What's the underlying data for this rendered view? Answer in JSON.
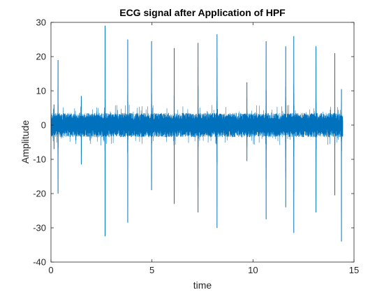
{
  "chart_data": {
    "type": "line",
    "title": "ECG signal after Application of HPF",
    "xlabel": "time",
    "ylabel": "Amplitude",
    "xlim": [
      0,
      15
    ],
    "ylim": [
      -40,
      30
    ],
    "xticks": [
      0,
      5,
      10,
      15
    ],
    "yticks": [
      -40,
      -30,
      -20,
      -10,
      0,
      10,
      20,
      30
    ],
    "grid": false,
    "legend": "none",
    "series": [
      {
        "color": "#0072BD",
        "noise_band": 3.5,
        "signal_range": [
          0,
          14.45
        ],
        "peaks": [
          {
            "x": 0.15,
            "max": 6,
            "min": -7
          },
          {
            "x": 0.35,
            "max": 19,
            "min": -20
          },
          {
            "x": 1.5,
            "max": 8.5,
            "min": -11.5
          },
          {
            "x": 2.68,
            "max": 29,
            "min": -32.5
          },
          {
            "x": 3.8,
            "max": 25,
            "min": -28.5
          },
          {
            "x": 4.98,
            "max": 24.5,
            "min": -19
          },
          {
            "x": 6.1,
            "max": 22.5,
            "min": -23
          },
          {
            "x": 7.28,
            "max": 24,
            "min": -25.5
          },
          {
            "x": 8.22,
            "max": 26.5,
            "min": -30
          },
          {
            "x": 9.7,
            "max": 12.5,
            "min": -10.5
          },
          {
            "x": 10.65,
            "max": 24.5,
            "min": -27.5
          },
          {
            "x": 11.62,
            "max": 23,
            "min": -24
          },
          {
            "x": 12.02,
            "max": 26,
            "min": -31.5
          },
          {
            "x": 13.12,
            "max": 23,
            "min": -25.5
          },
          {
            "x": 14.05,
            "max": 21,
            "min": -20.5
          },
          {
            "x": 14.38,
            "max": 10.5,
            "min": -34
          }
        ]
      }
    ]
  }
}
